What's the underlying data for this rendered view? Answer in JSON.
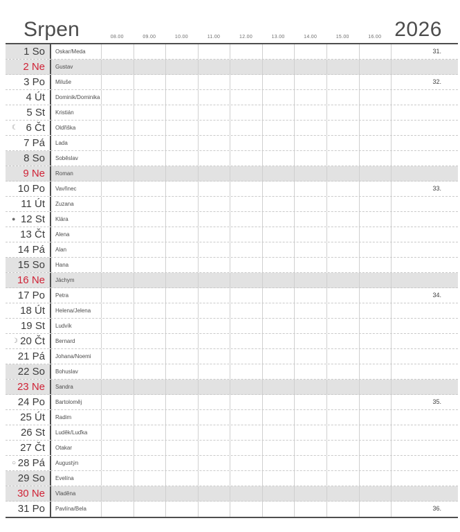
{
  "header": {
    "month_title": "Srpen",
    "year": "2026",
    "time_labels": [
      "08.00",
      "09.00",
      "10.00",
      "11.00",
      "12.00",
      "13.00",
      "14.00",
      "15.00",
      "16.00"
    ]
  },
  "colors": {
    "weekend_row_bg": "#e2e2e2",
    "sunday_text": "#cf2336",
    "grid_light_line": "#cfcfcf",
    "grid_dark_line": "#4e4e4e"
  },
  "moon_phases": {
    "last_quarter": "☾",
    "new_moon": "●",
    "first_quarter": "☽",
    "full_moon": "○"
  },
  "days": [
    {
      "day": 1,
      "weekday": "So",
      "name_day": "Oskar/Meda",
      "week_number": "31.",
      "moon": null,
      "kind": "sat"
    },
    {
      "day": 2,
      "weekday": "Ne",
      "name_day": "Gustav",
      "week_number": null,
      "moon": null,
      "kind": "sun"
    },
    {
      "day": 3,
      "weekday": "Po",
      "name_day": "Miluše",
      "week_number": "32.",
      "moon": null,
      "kind": "wd"
    },
    {
      "day": 4,
      "weekday": "Út",
      "name_day": "Dominik/Dominika",
      "week_number": null,
      "moon": null,
      "kind": "wd"
    },
    {
      "day": 5,
      "weekday": "St",
      "name_day": "Kristián",
      "week_number": null,
      "moon": null,
      "kind": "wd"
    },
    {
      "day": 6,
      "weekday": "Čt",
      "name_day": "Oldřiška",
      "week_number": null,
      "moon": "last_quarter",
      "kind": "wd"
    },
    {
      "day": 7,
      "weekday": "Pá",
      "name_day": "Lada",
      "week_number": null,
      "moon": null,
      "kind": "wd"
    },
    {
      "day": 8,
      "weekday": "So",
      "name_day": "Soběslav",
      "week_number": null,
      "moon": null,
      "kind": "sat"
    },
    {
      "day": 9,
      "weekday": "Ne",
      "name_day": "Roman",
      "week_number": null,
      "moon": null,
      "kind": "sun"
    },
    {
      "day": 10,
      "weekday": "Po",
      "name_day": "Vavřinec",
      "week_number": "33.",
      "moon": null,
      "kind": "wd"
    },
    {
      "day": 11,
      "weekday": "Út",
      "name_day": "Zuzana",
      "week_number": null,
      "moon": null,
      "kind": "wd"
    },
    {
      "day": 12,
      "weekday": "St",
      "name_day": "Klára",
      "week_number": null,
      "moon": "new_moon",
      "kind": "wd"
    },
    {
      "day": 13,
      "weekday": "Čt",
      "name_day": "Alena",
      "week_number": null,
      "moon": null,
      "kind": "wd"
    },
    {
      "day": 14,
      "weekday": "Pá",
      "name_day": "Alan",
      "week_number": null,
      "moon": null,
      "kind": "wd"
    },
    {
      "day": 15,
      "weekday": "So",
      "name_day": "Hana",
      "week_number": null,
      "moon": null,
      "kind": "sat"
    },
    {
      "day": 16,
      "weekday": "Ne",
      "name_day": "Jáchym",
      "week_number": null,
      "moon": null,
      "kind": "sun"
    },
    {
      "day": 17,
      "weekday": "Po",
      "name_day": "Petra",
      "week_number": "34.",
      "moon": null,
      "kind": "wd"
    },
    {
      "day": 18,
      "weekday": "Út",
      "name_day": "Helena/Jelena",
      "week_number": null,
      "moon": null,
      "kind": "wd"
    },
    {
      "day": 19,
      "weekday": "St",
      "name_day": "Ludvík",
      "week_number": null,
      "moon": null,
      "kind": "wd"
    },
    {
      "day": 20,
      "weekday": "Čt",
      "name_day": "Bernard",
      "week_number": null,
      "moon": "first_quarter",
      "kind": "wd"
    },
    {
      "day": 21,
      "weekday": "Pá",
      "name_day": "Johana/Noemi",
      "week_number": null,
      "moon": null,
      "kind": "wd"
    },
    {
      "day": 22,
      "weekday": "So",
      "name_day": "Bohuslav",
      "week_number": null,
      "moon": null,
      "kind": "sat"
    },
    {
      "day": 23,
      "weekday": "Ne",
      "name_day": "Sandra",
      "week_number": null,
      "moon": null,
      "kind": "sun"
    },
    {
      "day": 24,
      "weekday": "Po",
      "name_day": "Bartoloměj",
      "week_number": "35.",
      "moon": null,
      "kind": "wd"
    },
    {
      "day": 25,
      "weekday": "Út",
      "name_day": "Radim",
      "week_number": null,
      "moon": null,
      "kind": "wd"
    },
    {
      "day": 26,
      "weekday": "St",
      "name_day": "Luděk/Luďka",
      "week_number": null,
      "moon": null,
      "kind": "wd"
    },
    {
      "day": 27,
      "weekday": "Čt",
      "name_day": "Otakar",
      "week_number": null,
      "moon": null,
      "kind": "wd"
    },
    {
      "day": 28,
      "weekday": "Pá",
      "name_day": "Augustýn",
      "week_number": null,
      "moon": "full_moon",
      "kind": "wd"
    },
    {
      "day": 29,
      "weekday": "So",
      "name_day": "Evelína",
      "week_number": null,
      "moon": null,
      "kind": "sat"
    },
    {
      "day": 30,
      "weekday": "Ne",
      "name_day": "Vladěna",
      "week_number": null,
      "moon": null,
      "kind": "sun"
    },
    {
      "day": 31,
      "weekday": "Po",
      "name_day": "Pavlína/Bela",
      "week_number": "36.",
      "moon": null,
      "kind": "wd"
    }
  ]
}
